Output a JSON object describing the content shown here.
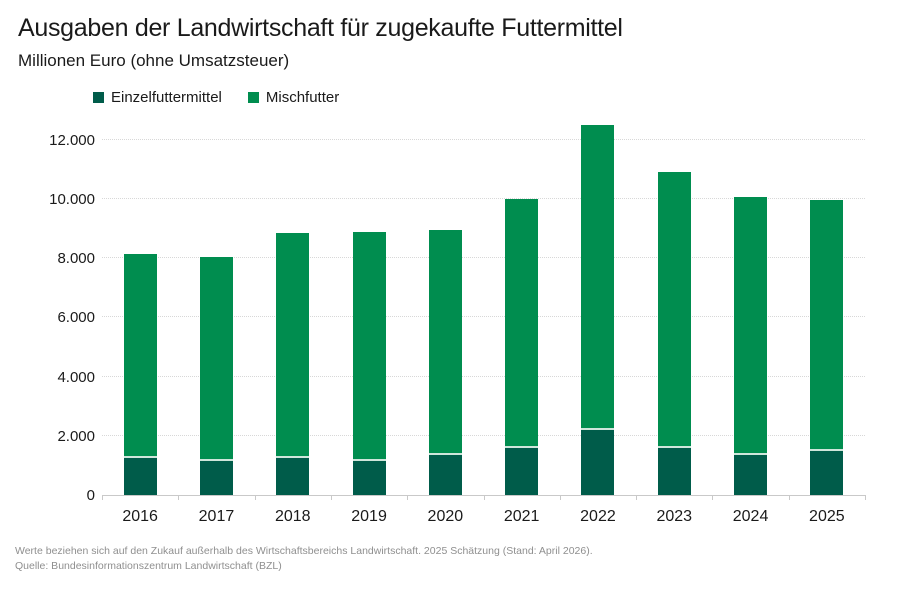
{
  "header": {
    "title": "Ausgaben der Landwirtschaft für zugekaufte Futtermittel",
    "subtitle": "Millionen Euro (ohne Umsatzsteuer)"
  },
  "chart_data": {
    "type": "bar",
    "stacked": true,
    "title": "Ausgaben der Landwirtschaft für zugekaufte Futtermittel",
    "subtitle": "Millionen Euro (ohne Umsatzsteuer)",
    "categories": [
      "2016",
      "2017",
      "2018",
      "2019",
      "2020",
      "2021",
      "2022",
      "2023",
      "2024",
      "2025"
    ],
    "series": [
      {
        "name": "Einzelfuttermittel",
        "color": "#005c4a",
        "values": [
          1250,
          1150,
          1250,
          1150,
          1350,
          1600,
          2200,
          1600,
          1350,
          1500
        ]
      },
      {
        "name": "Mischfutter",
        "color": "#008d4f",
        "values": [
          6900,
          6900,
          7600,
          7750,
          7600,
          8400,
          10300,
          9300,
          8700,
          8450
        ]
      }
    ],
    "totals": [
      8150,
      8050,
      8850,
      8900,
      8950,
      10000,
      12500,
      10900,
      10050,
      9950
    ],
    "xlabel": "",
    "ylabel": "Millionen Euro",
    "ylim": [
      0,
      12700
    ],
    "yticks": [
      0,
      2000,
      4000,
      6000,
      8000,
      10000,
      12000
    ],
    "ytick_labels": [
      "0",
      "2.000",
      "4.000",
      "6.000",
      "8.000",
      "10.000",
      "12.000"
    ],
    "grid": "horizontal-dotted",
    "legend_position": "top-left"
  },
  "footer": {
    "note": "Werte beziehen sich auf den Zukauf außerhalb des Wirtschaftsbereichs Landwirtschaft. 2025 Schätzung (Stand: April 2026).",
    "source": "Quelle: Bundesinformationszentrum Landwirtschaft (BZL)"
  },
  "colors": {
    "einzelfuttermittel": "#005c4a",
    "mischfutter": "#008d4f",
    "segment_divider": "#cfe6db",
    "gridline": "#d8d8d8",
    "axis": "#c9c9c9",
    "text": "#1a1a1a",
    "footnote_text": "#8f8f8f"
  }
}
